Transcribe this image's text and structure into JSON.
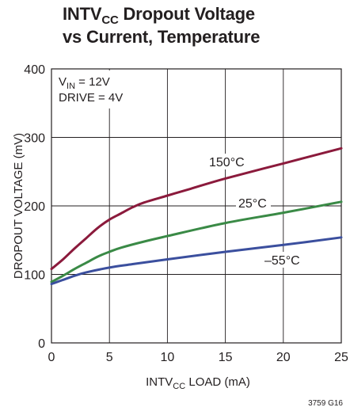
{
  "chart_data": {
    "type": "line",
    "title_main": "INTV",
    "title_sub": "CC",
    "title_rest": " Dropout Voltage",
    "title_line2": "vs Current, Temperature",
    "ylabel": "DROPOUT VOLTAGE (mV)",
    "xlabel_main": "INTV",
    "xlabel_sub": "CC",
    "xlabel_rest": " LOAD (mA)",
    "xlim": [
      0,
      25
    ],
    "ylim": [
      0,
      400
    ],
    "x_ticks": [
      "0",
      "5",
      "10",
      "15",
      "20",
      "25"
    ],
    "y_ticks": [
      "0",
      "100",
      "200",
      "300",
      "400"
    ],
    "grid": true,
    "annotations": {
      "vin_main": "V",
      "vin_sub": "IN",
      "vin_rest": " = 12V",
      "drive": "DRIVE = 4V"
    },
    "figure_id": "3759 G16",
    "series": [
      {
        "name": "150°C",
        "color": "#8b1a3c",
        "x": [
          0,
          1,
          2,
          3,
          4,
          5,
          6,
          7,
          8,
          10,
          12,
          15,
          20,
          25
        ],
        "y": [
          108,
          122,
          138,
          153,
          168,
          180,
          189,
          198,
          205,
          215,
          225,
          240,
          262,
          284
        ]
      },
      {
        "name": "25°C",
        "color": "#3a8a46",
        "x": [
          0,
          1,
          2,
          3,
          4,
          5,
          6,
          8,
          10,
          15,
          20,
          25
        ],
        "y": [
          89,
          98,
          108,
          117,
          126,
          133,
          139,
          148,
          156,
          175,
          190,
          206
        ]
      },
      {
        "name": "–55°C",
        "color": "#3b4f9e",
        "x": [
          0,
          1,
          2,
          3,
          5,
          7,
          10,
          15,
          20,
          25
        ],
        "y": [
          86,
          92,
          98,
          103,
          110,
          115,
          122,
          133,
          143,
          154
        ]
      }
    ]
  }
}
